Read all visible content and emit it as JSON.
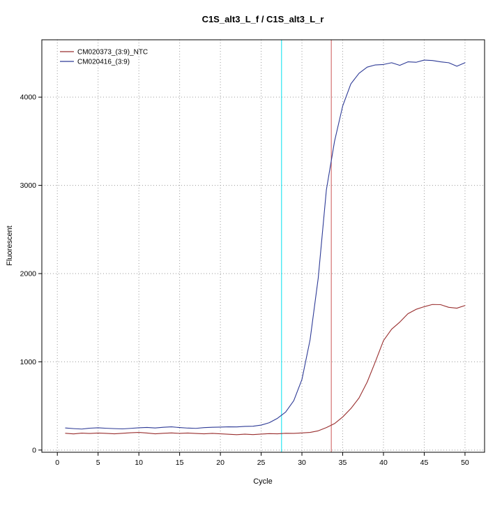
{
  "title": "C1S_alt3_L_f / C1S_alt3_L_r",
  "chart_data": {
    "type": "line",
    "title": "C1S_alt3_L_f / C1S_alt3_L_r",
    "xlabel": "Cycle",
    "ylabel": "Fluorescent",
    "xlim": [
      -1.9,
      52.4
    ],
    "ylim": [
      -25,
      4650
    ],
    "x_ticks": [
      0,
      5,
      10,
      15,
      20,
      25,
      30,
      35,
      40,
      45,
      50
    ],
    "y_ticks": [
      0,
      1000,
      2000,
      3000,
      4000
    ],
    "grid": "dotted lines at major x and y ticks",
    "legend_position": "top-left inside plot",
    "x": [
      1,
      2,
      3,
      4,
      5,
      6,
      7,
      8,
      9,
      10,
      11,
      12,
      13,
      14,
      15,
      16,
      17,
      18,
      19,
      20,
      21,
      22,
      23,
      24,
      25,
      26,
      27,
      28,
      29,
      30,
      31,
      32,
      33,
      34,
      35,
      36,
      37,
      38,
      39,
      40,
      41,
      42,
      43,
      44,
      45,
      46,
      47,
      48,
      49,
      50
    ],
    "series": [
      {
        "name": "CM020373_(3:9)_NTC",
        "color": "#992e2e",
        "values": [
          190,
          183,
          192,
          188,
          193,
          189,
          184,
          190,
          196,
          200,
          193,
          184,
          190,
          194,
          189,
          193,
          188,
          184,
          189,
          184,
          179,
          174,
          180,
          175,
          181,
          186,
          184,
          190,
          189,
          194,
          200,
          218,
          255,
          300,
          375,
          470,
          590,
          770,
          1000,
          1240,
          1370,
          1450,
          1545,
          1595,
          1625,
          1650,
          1648,
          1618,
          1608,
          1638
        ]
      },
      {
        "name": "CM020416_(3:9)",
        "color": "#2d3a96",
        "values": [
          250,
          243,
          238,
          248,
          252,
          247,
          243,
          240,
          246,
          252,
          256,
          250,
          258,
          263,
          255,
          249,
          246,
          254,
          258,
          260,
          263,
          262,
          268,
          270,
          283,
          310,
          360,
          430,
          560,
          800,
          1250,
          1950,
          2950,
          3500,
          3900,
          4150,
          4270,
          4340,
          4365,
          4370,
          4390,
          4360,
          4400,
          4395,
          4420,
          4415,
          4400,
          4390,
          4350,
          4390
        ]
      }
    ],
    "vlines": [
      {
        "x": 27.5,
        "color": "#00e0ee",
        "label": "cyan-threshold-line"
      },
      {
        "x": 33.6,
        "color": "#cc5555",
        "label": "red-threshold-line"
      }
    ]
  },
  "colors": {
    "grid": "#9a9a9a",
    "axis": "#000000",
    "background": "#ffffff"
  }
}
